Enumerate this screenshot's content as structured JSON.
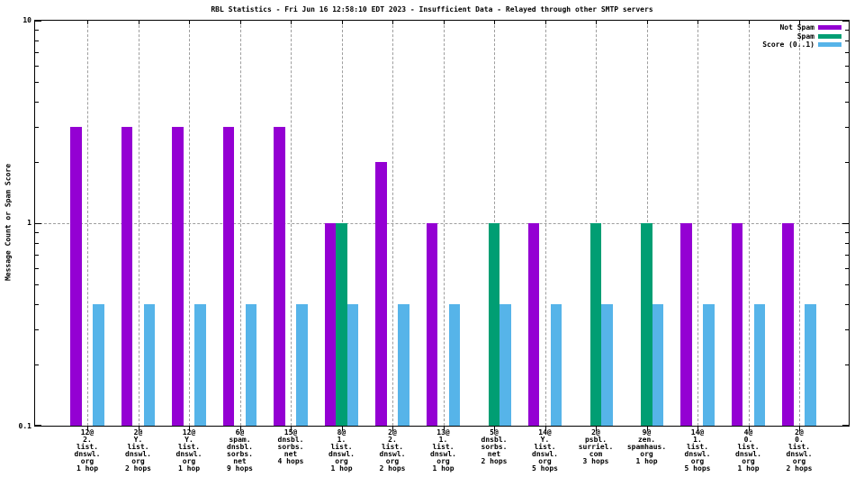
{
  "title": "RBL Statistics - Fri Jun 16 12:58:10 EDT 2023 - Insufficient Data - Relayed through other SMTP servers",
  "chart_data": {
    "type": "bar",
    "y_scale": "log",
    "ylabel": "Message Count or Spam Score",
    "ylim": [
      0.1,
      10
    ],
    "ytick_labels": [
      "0.1",
      "1",
      "10"
    ],
    "grid": "horizontal dashed line at y=1, vertical dashed line at each category",
    "legend_position": "top-right-inside",
    "categories": [
      [
        "12@",
        "2.",
        "list.",
        "dnswl.",
        "org",
        "1 hop"
      ],
      [
        "2@",
        "Y.",
        "list.",
        "dnswl.",
        "org",
        "2 hops"
      ],
      [
        "12@",
        "Y.",
        "list.",
        "dnswl.",
        "org",
        "1 hop"
      ],
      [
        "6@",
        "spam.",
        "dnsbl.",
        "sorbs.",
        "net",
        "9 hops"
      ],
      [
        "15@",
        "dnsbl.",
        "sorbs.",
        "net",
        "4 hops"
      ],
      [
        "8@",
        "1.",
        "list.",
        "dnswl.",
        "org",
        "1 hop"
      ],
      [
        "2@",
        "2.",
        "list.",
        "dnswl.",
        "org",
        "2 hops"
      ],
      [
        "13@",
        "1.",
        "list.",
        "dnswl.",
        "org",
        "1 hop"
      ],
      [
        "5@",
        "dnsbl.",
        "sorbs.",
        "net",
        "2 hops"
      ],
      [
        "14@",
        "Y.",
        "list.",
        "dnswl.",
        "org",
        "5 hops"
      ],
      [
        "2@",
        "psbl.",
        "surriel.",
        "com",
        "3 hops"
      ],
      [
        "9@",
        "zen.",
        "spamhaus.",
        "org",
        "1 hop"
      ],
      [
        "14@",
        "1.",
        "list.",
        "dnswl.",
        "org",
        "5 hops"
      ],
      [
        "4@",
        "0.",
        "list.",
        "dnswl.",
        "org",
        "1 hop"
      ],
      [
        "2@",
        "0.",
        "list.",
        "dnswl.",
        "org",
        "2 hops"
      ]
    ],
    "series": [
      {
        "name": "Not Spam",
        "color": "#9400d3",
        "values": [
          3,
          3,
          3,
          3,
          3,
          1,
          2,
          1,
          null,
          1,
          null,
          null,
          1,
          1,
          1
        ]
      },
      {
        "name": "Spam",
        "color": "#009e73",
        "values": [
          null,
          null,
          null,
          null,
          null,
          1,
          null,
          null,
          1,
          null,
          1,
          1,
          null,
          null,
          null
        ]
      },
      {
        "name": "Score (0..1)",
        "color": "#56b4e9",
        "values": [
          0.4,
          0.4,
          0.4,
          0.4,
          0.4,
          0.4,
          0.4,
          0.4,
          0.4,
          0.4,
          0.4,
          0.4,
          0.4,
          0.4,
          0.4
        ]
      }
    ]
  }
}
